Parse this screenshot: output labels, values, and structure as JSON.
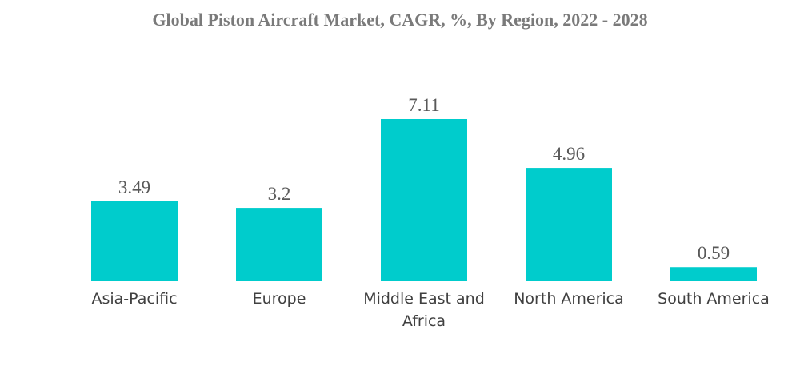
{
  "chart_data": {
    "type": "bar",
    "title": "Global Piston Aircraft Market, CAGR, %, By Region, 2022 - 2028",
    "categories": [
      "Asia-Pacific",
      "Europe",
      "Middle East and Africa",
      "North America",
      "South America"
    ],
    "category_lines": [
      [
        "Asia-Pacific"
      ],
      [
        "Europe"
      ],
      [
        "Middle East and",
        "Africa"
      ],
      [
        "North America"
      ],
      [
        "South America"
      ]
    ],
    "values": [
      3.49,
      3.2,
      7.11,
      4.96,
      0.59
    ],
    "value_labels": [
      "3.49",
      "3.2",
      "7.11",
      "4.96",
      "0.59"
    ],
    "xlabel": "",
    "ylabel": "",
    "ylim": [
      0,
      7.11
    ],
    "grid": false,
    "legend": "none",
    "bar_color": "#00CCCC",
    "axis_color": "#d9d9d9"
  }
}
